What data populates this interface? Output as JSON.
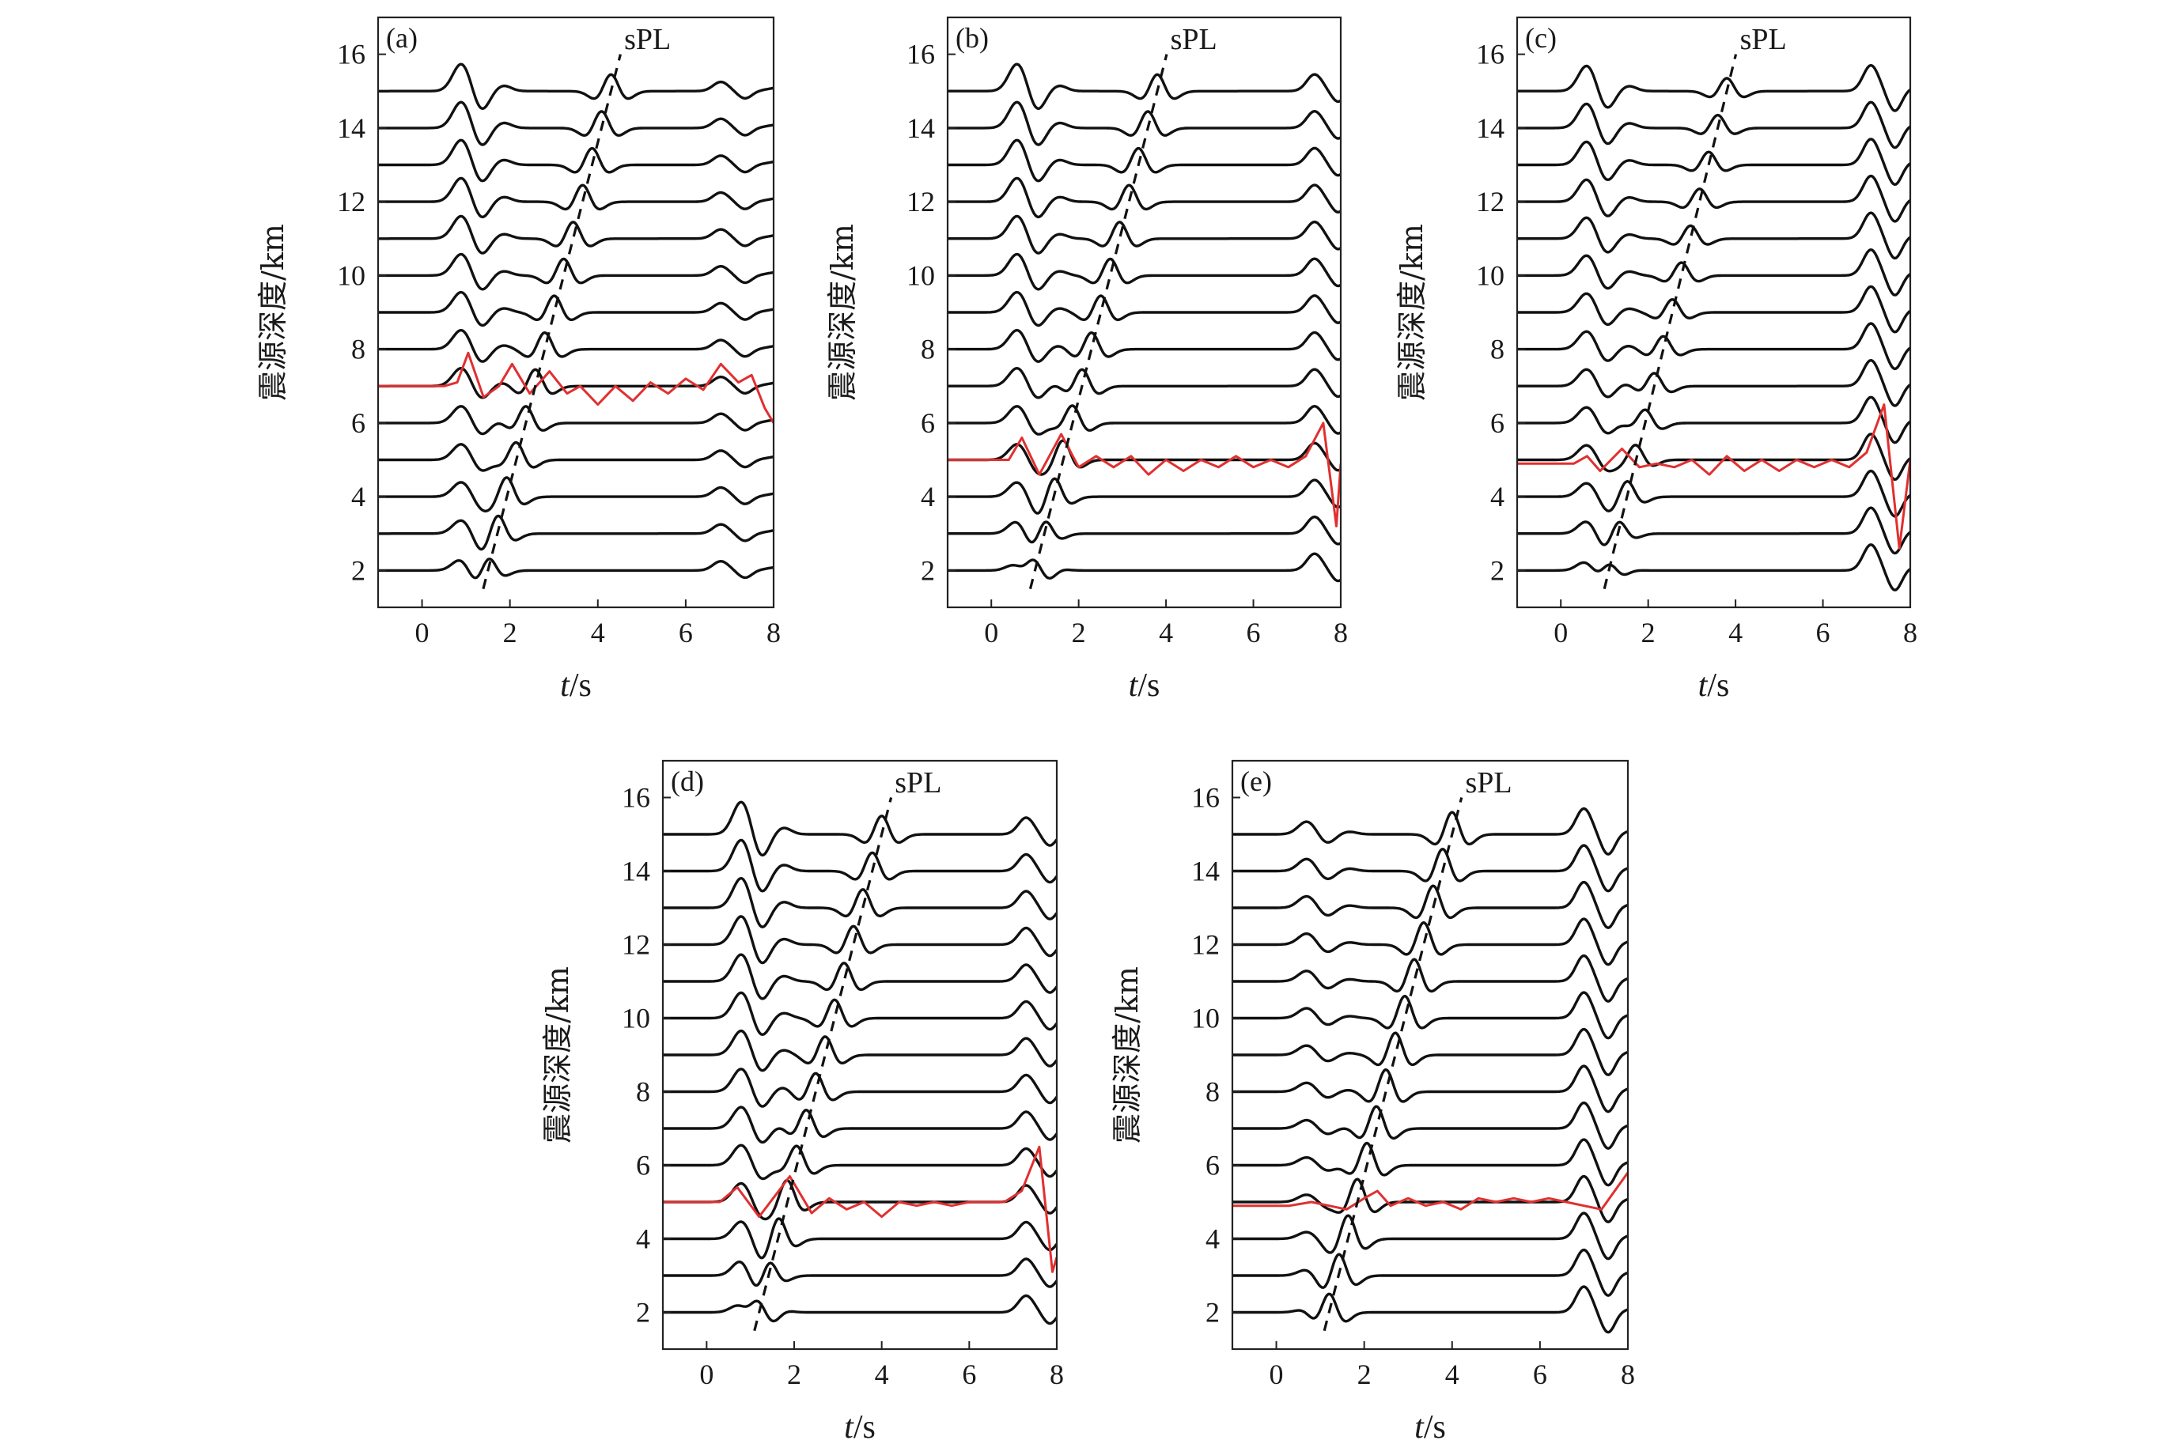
{
  "chart_data": [
    {
      "type": "line",
      "panel_label": "(a)",
      "annotation": "sPL",
      "xlabel_italic": "t",
      "xlabel_unit": "/s",
      "ylabel": "震源深度/km",
      "xlim": [
        -1,
        8
      ],
      "ylim": [
        1,
        17
      ],
      "xticks": [
        0,
        2,
        4,
        6,
        8
      ],
      "yticks": [
        2,
        4,
        6,
        8,
        10,
        12,
        14,
        16
      ],
      "depths_km": [
        2,
        3,
        4,
        5,
        6,
        7,
        8,
        9,
        10,
        11,
        12,
        13,
        14,
        15
      ],
      "direct_arrival_s": 0.9,
      "direct_amplitude": 0.75,
      "spl_moveout": {
        "t_at_2km": 1.5,
        "t_at_15km": 4.3
      },
      "spl_amplitude": 0.45,
      "late_arrival": {
        "t": 6.8,
        "amplitude": 0.25
      },
      "reference_trace": {
        "color": "#e03030",
        "depth_km": 7,
        "points": [
          [
            -1,
            7.0
          ],
          [
            0.5,
            7.0
          ],
          [
            0.8,
            7.1
          ],
          [
            1.05,
            7.9
          ],
          [
            1.4,
            6.7
          ],
          [
            1.75,
            7.0
          ],
          [
            2.05,
            7.6
          ],
          [
            2.45,
            6.8
          ],
          [
            2.9,
            7.4
          ],
          [
            3.3,
            6.8
          ],
          [
            3.6,
            7.0
          ],
          [
            4.0,
            6.5
          ],
          [
            4.4,
            7.0
          ],
          [
            4.8,
            6.6
          ],
          [
            5.2,
            7.1
          ],
          [
            5.6,
            6.8
          ],
          [
            6.0,
            7.2
          ],
          [
            6.4,
            6.9
          ],
          [
            6.8,
            7.6
          ],
          [
            7.2,
            7.1
          ],
          [
            7.5,
            7.3
          ],
          [
            7.8,
            6.4
          ],
          [
            8.0,
            6.0
          ]
        ]
      }
    },
    {
      "type": "line",
      "panel_label": "(b)",
      "annotation": "sPL",
      "xlabel_italic": "t",
      "xlabel_unit": "/s",
      "ylabel": "震源深度/km",
      "xlim": [
        -1,
        8
      ],
      "ylim": [
        1,
        17
      ],
      "xticks": [
        0,
        2,
        4,
        6,
        8
      ],
      "yticks": [
        2,
        4,
        6,
        8,
        10,
        12,
        14,
        16
      ],
      "depths_km": [
        2,
        3,
        4,
        5,
        6,
        7,
        8,
        9,
        10,
        11,
        12,
        13,
        14,
        15
      ],
      "direct_arrival_s": 0.6,
      "direct_amplitude": 0.75,
      "spl_moveout": {
        "t_at_2km": 1.0,
        "t_at_15km": 3.8
      },
      "spl_amplitude": 0.45,
      "late_arrival": {
        "t": 7.4,
        "amplitude": 0.45
      },
      "reference_trace": {
        "color": "#e03030",
        "depth_km": 5,
        "points": [
          [
            -1,
            5.0
          ],
          [
            0.4,
            5.0
          ],
          [
            0.7,
            5.6
          ],
          [
            1.1,
            4.6
          ],
          [
            1.6,
            5.7
          ],
          [
            2.0,
            4.8
          ],
          [
            2.4,
            5.1
          ],
          [
            2.8,
            4.8
          ],
          [
            3.2,
            5.1
          ],
          [
            3.6,
            4.6
          ],
          [
            4.0,
            5.0
          ],
          [
            4.4,
            4.7
          ],
          [
            4.8,
            5.0
          ],
          [
            5.2,
            4.8
          ],
          [
            5.6,
            5.1
          ],
          [
            6.0,
            4.8
          ],
          [
            6.4,
            5.0
          ],
          [
            6.8,
            4.8
          ],
          [
            7.2,
            5.1
          ],
          [
            7.6,
            6.0
          ],
          [
            7.9,
            3.2
          ],
          [
            8.0,
            4.9
          ]
        ]
      }
    },
    {
      "type": "line",
      "panel_label": "(c)",
      "annotation": "sPL",
      "xlabel_italic": "t",
      "xlabel_unit": "/s",
      "ylabel": "震源深度/km",
      "xlim": [
        -1,
        8
      ],
      "ylim": [
        1,
        17
      ],
      "xticks": [
        0,
        2,
        4,
        6,
        8
      ],
      "yticks": [
        2,
        4,
        6,
        8,
        10,
        12,
        14,
        16
      ],
      "depths_km": [
        2,
        3,
        4,
        5,
        6,
        7,
        8,
        9,
        10,
        11,
        12,
        13,
        14,
        15
      ],
      "direct_arrival_s": 0.6,
      "direct_amplitude": 0.7,
      "spl_moveout": {
        "t_at_2km": 1.1,
        "t_at_15km": 3.8
      },
      "spl_amplitude": 0.35,
      "late_arrival": {
        "t": 7.1,
        "amplitude": 0.7
      },
      "reference_trace": {
        "color": "#e03030",
        "depth_km": 5,
        "points": [
          [
            -1,
            4.9
          ],
          [
            0.3,
            4.9
          ],
          [
            0.6,
            5.1
          ],
          [
            0.9,
            4.7
          ],
          [
            1.4,
            5.3
          ],
          [
            1.8,
            4.8
          ],
          [
            2.2,
            4.9
          ],
          [
            2.6,
            4.8
          ],
          [
            3.0,
            5.0
          ],
          [
            3.4,
            4.6
          ],
          [
            3.8,
            5.1
          ],
          [
            4.2,
            4.7
          ],
          [
            4.6,
            5.0
          ],
          [
            5.0,
            4.7
          ],
          [
            5.4,
            5.0
          ],
          [
            5.8,
            4.8
          ],
          [
            6.2,
            5.0
          ],
          [
            6.6,
            4.8
          ],
          [
            7.0,
            5.2
          ],
          [
            7.4,
            6.5
          ],
          [
            7.75,
            2.6
          ],
          [
            8.0,
            5.0
          ]
        ]
      }
    },
    {
      "type": "line",
      "panel_label": "(d)",
      "annotation": "sPL",
      "xlabel_italic": "t",
      "xlabel_unit": "/s",
      "ylabel": "震源深度/km",
      "xlim": [
        -1,
        8
      ],
      "ylim": [
        1,
        17
      ],
      "xticks": [
        0,
        2,
        4,
        6,
        8
      ],
      "yticks": [
        2,
        4,
        6,
        8,
        10,
        12,
        14,
        16
      ],
      "depths_km": [
        2,
        3,
        4,
        5,
        6,
        7,
        8,
        9,
        10,
        11,
        12,
        13,
        14,
        15
      ],
      "direct_arrival_s": 0.8,
      "direct_amplitude": 0.9,
      "spl_moveout": {
        "t_at_2km": 1.2,
        "t_at_15km": 4.0
      },
      "spl_amplitude": 0.5,
      "late_arrival": {
        "t": 7.3,
        "amplitude": 0.45
      },
      "reference_trace": {
        "color": "#e03030",
        "depth_km": 5,
        "points": [
          [
            -1,
            5.0
          ],
          [
            0.3,
            5.0
          ],
          [
            0.7,
            5.4
          ],
          [
            1.2,
            4.6
          ],
          [
            1.9,
            5.7
          ],
          [
            2.4,
            4.7
          ],
          [
            2.8,
            5.1
          ],
          [
            3.2,
            4.8
          ],
          [
            3.6,
            5.0
          ],
          [
            4.0,
            4.6
          ],
          [
            4.4,
            5.0
          ],
          [
            4.8,
            4.9
          ],
          [
            5.2,
            5.0
          ],
          [
            5.6,
            4.9
          ],
          [
            6.0,
            5.0
          ],
          [
            6.4,
            5.0
          ],
          [
            6.8,
            5.0
          ],
          [
            7.2,
            5.3
          ],
          [
            7.6,
            6.5
          ],
          [
            7.9,
            3.1
          ],
          [
            8.0,
            3.5
          ]
        ]
      }
    },
    {
      "type": "line",
      "panel_label": "(e)",
      "annotation": "sPL",
      "xlabel_italic": "t",
      "xlabel_unit": "/s",
      "ylabel": "震源深度/km",
      "xlim": [
        -1,
        8
      ],
      "ylim": [
        1,
        17
      ],
      "xticks": [
        0,
        2,
        4,
        6,
        8
      ],
      "yticks": [
        2,
        4,
        6,
        8,
        10,
        12,
        14,
        16
      ],
      "depths_km": [
        2,
        3,
        4,
        5,
        6,
        7,
        8,
        9,
        10,
        11,
        12,
        13,
        14,
        15
      ],
      "direct_arrival_s": 0.7,
      "direct_amplitude": 0.35,
      "spl_moveout": {
        "t_at_2km": 1.2,
        "t_at_15km": 4.0
      },
      "spl_amplitude": 0.6,
      "late_arrival": {
        "t": 7.0,
        "amplitude": 0.7
      },
      "reference_trace": {
        "color": "#e03030",
        "depth_km": 5,
        "points": [
          [
            -1,
            4.9
          ],
          [
            0.3,
            4.9
          ],
          [
            0.8,
            5.0
          ],
          [
            1.2,
            4.9
          ],
          [
            1.6,
            4.8
          ],
          [
            2.0,
            5.1
          ],
          [
            2.3,
            5.3
          ],
          [
            2.6,
            4.9
          ],
          [
            3.0,
            5.1
          ],
          [
            3.4,
            4.9
          ],
          [
            3.8,
            5.0
          ],
          [
            4.2,
            4.8
          ],
          [
            4.6,
            5.1
          ],
          [
            5.0,
            5.0
          ],
          [
            5.4,
            5.1
          ],
          [
            5.8,
            5.0
          ],
          [
            6.2,
            5.1
          ],
          [
            6.6,
            5.0
          ],
          [
            7.0,
            4.9
          ],
          [
            7.4,
            4.8
          ],
          [
            7.7,
            5.3
          ],
          [
            8.0,
            5.8
          ]
        ]
      }
    }
  ]
}
